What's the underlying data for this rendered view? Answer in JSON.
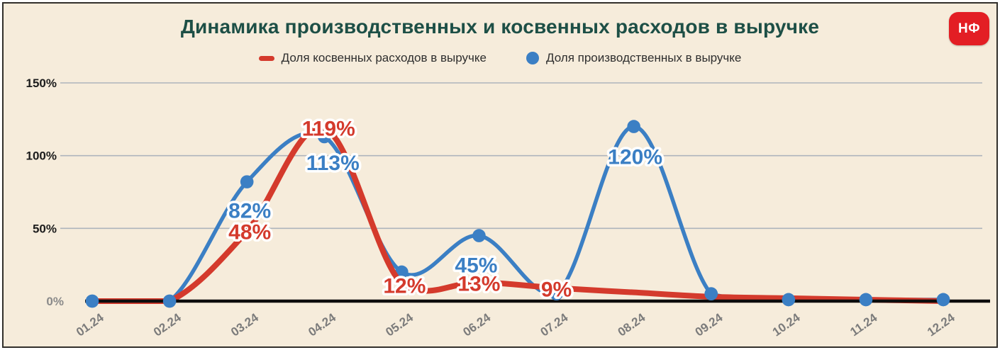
{
  "title": "Динамика производственных и косвенных расходов в выручке",
  "logo": {
    "text": "НФ",
    "background": "#e31e24"
  },
  "legend": [
    {
      "label": "Доля косвенных расходов в выручке",
      "marker": "red-dash",
      "color": "#d43a2c"
    },
    {
      "label": "Доля производственных в выручке",
      "marker": "blue-dot",
      "color": "#3b7fc4"
    }
  ],
  "colors": {
    "background": "#f6ecdb",
    "title": "#1d4f46",
    "gridline": "#aeb4bc",
    "axis": "#0d0d0d",
    "red_series": "#d43a2c",
    "blue_series": "#3b7fc4"
  },
  "chart_data": {
    "type": "line",
    "title": "Динамика производственных и косвенных расходов в выручке",
    "categories": [
      "01.24",
      "02.24",
      "03.24",
      "04.24",
      "05.24",
      "06.24",
      "07.24",
      "08.24",
      "09.24",
      "10.24",
      "11.24",
      "12.24"
    ],
    "series": [
      {
        "name": "Доля косвенных расходов в выручке",
        "color": "#d43a2c",
        "values": [
          0,
          0,
          48,
          119,
          12,
          13,
          9,
          6,
          3,
          2,
          1,
          0
        ],
        "point_labels": [
          null,
          null,
          "48%",
          "119%",
          "12%",
          "13%",
          "9%",
          null,
          null,
          null,
          null,
          null
        ]
      },
      {
        "name": "Доля производственных в выручке",
        "color": "#3b7fc4",
        "values": [
          0,
          0,
          82,
          113,
          20,
          45,
          5,
          120,
          5,
          1,
          1,
          1
        ],
        "point_labels": [
          null,
          null,
          "82%",
          "113%",
          null,
          "45%",
          null,
          "120%",
          null,
          null,
          null,
          null
        ]
      }
    ],
    "xlabel": "",
    "ylabel": "",
    "yticks": [
      "0%",
      "50%",
      "100%",
      "150%"
    ],
    "ylim": [
      0,
      150
    ],
    "grid": true,
    "legend_position": "top"
  }
}
